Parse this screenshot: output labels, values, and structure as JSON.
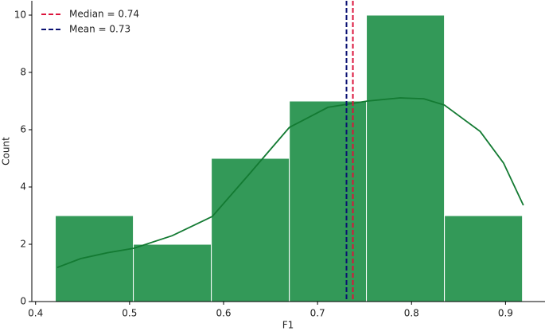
{
  "chart_data": {
    "type": "histogram",
    "xlabel": "F1",
    "ylabel": "Count",
    "bins": [
      0.421,
      0.504,
      0.587,
      0.67,
      0.752,
      0.835,
      0.918
    ],
    "values": [
      3,
      2,
      5,
      7,
      10,
      3
    ],
    "color": "#339958",
    "kde": {
      "color": "#137a32",
      "x": [
        0.423,
        0.448,
        0.476,
        0.5046,
        0.5454,
        0.588,
        0.626,
        0.67,
        0.711,
        0.753,
        0.788,
        0.813,
        0.835,
        0.873,
        0.898,
        0.919
      ],
      "values": [
        1.19,
        1.5,
        1.7,
        1.86,
        2.3,
        2.97,
        4.4,
        6.08,
        6.78,
        7.0,
        7.11,
        7.08,
        6.86,
        5.94,
        4.83,
        3.36
      ]
    },
    "vlines": [
      {
        "value": 0.7376,
        "label": "Median = 0.74",
        "color": "#dc143c"
      },
      {
        "value": 0.7308,
        "label": "Mean = 0.73",
        "color": "#0a1172"
      }
    ],
    "legend": "upper left",
    "xlim": [
      0.396,
      0.942
    ],
    "ylim": [
      0,
      10.5
    ],
    "xticks": [
      0.4,
      0.5,
      0.6,
      0.7,
      0.8,
      0.9
    ],
    "yticks": [
      0,
      2,
      4,
      6,
      8,
      10
    ]
  }
}
